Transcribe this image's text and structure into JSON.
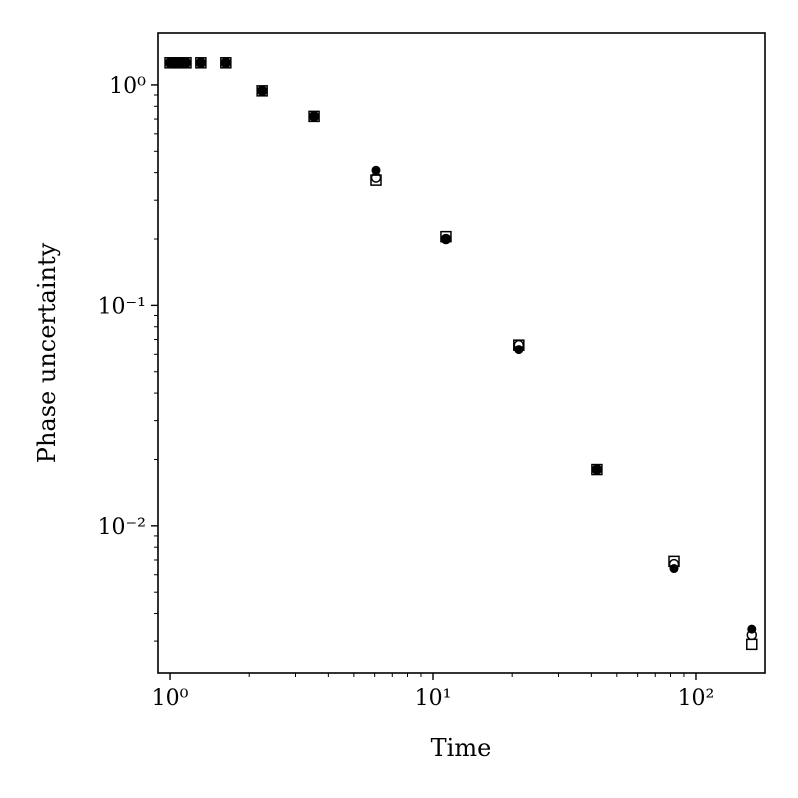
{
  "chart_data": {
    "type": "scatter",
    "x_label": "Time",
    "y_label": "Phase uncertainty",
    "x_scale": "log",
    "y_scale": "log",
    "xlim": [
      0.9,
      183
    ],
    "ylim": [
      0.00215,
      1.72
    ],
    "xticks": [
      {
        "value": 1,
        "label": "10⁰"
      },
      {
        "value": 10,
        "label": "10¹"
      },
      {
        "value": 100,
        "label": "10²"
      }
    ],
    "yticks": [
      {
        "value": 0.01,
        "label": "10⁻²"
      },
      {
        "value": 0.1,
        "label": "10⁻¹"
      },
      {
        "value": 1,
        "label": "10⁰"
      }
    ],
    "xminorticks": [
      2,
      3,
      4,
      5,
      6,
      7,
      8,
      9,
      20,
      30,
      40,
      50,
      60,
      70,
      80,
      90
    ],
    "yminorticks": [
      0.003,
      0.004,
      0.005,
      0.006,
      0.007,
      0.008,
      0.009,
      0.02,
      0.03,
      0.04,
      0.05,
      0.06,
      0.07,
      0.08,
      0.09,
      0.2,
      0.3,
      0.4,
      0.5,
      0.6,
      0.7,
      0.8,
      0.9
    ],
    "x": [
      1,
      1.045,
      1.09,
      1.15,
      1.31,
      1.63,
      2.24,
      3.53,
      6.07,
      11.2,
      21.2,
      42.0,
      82.5,
      163
    ],
    "series": [
      {
        "marker": "circle",
        "color": "#000000",
        "values": [
          1.26,
          1.26,
          1.26,
          1.26,
          1.26,
          1.26,
          0.94,
          0.72,
          0.41,
          0.2,
          0.063,
          0.018,
          0.0064,
          0.0034
        ]
      },
      {
        "marker": "circle-open",
        "color": "#000000",
        "values": [
          1.26,
          1.26,
          1.26,
          1.26,
          1.26,
          1.26,
          0.94,
          0.72,
          0.38,
          0.2,
          0.066,
          0.018,
          0.0067,
          0.0032
        ]
      },
      {
        "marker": "square-open",
        "color": "#000000",
        "values": [
          1.26,
          1.26,
          1.26,
          1.26,
          1.26,
          1.26,
          0.94,
          0.72,
          0.37,
          0.205,
          0.066,
          0.018,
          0.0069,
          0.0029
        ]
      }
    ]
  }
}
